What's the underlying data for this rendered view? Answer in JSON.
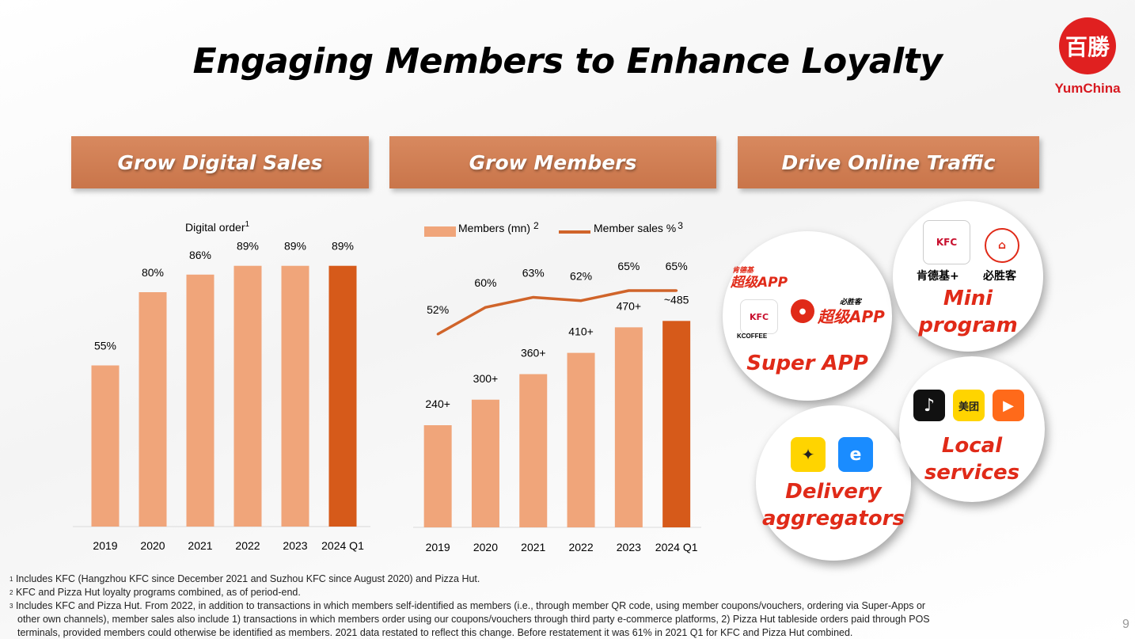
{
  "title": "Engaging Members to Enhance Loyalty",
  "logo": {
    "text": "YumChina",
    "seal": "百勝"
  },
  "banners": [
    "Grow Digital Sales",
    "Grow Members",
    "Drive Online Traffic"
  ],
  "page_number": "9",
  "chart_data": [
    {
      "type": "bar",
      "title": "Digital order",
      "title_sup": "1",
      "categories": [
        "2019",
        "2020",
        "2021",
        "2022",
        "2023",
        "2024 Q1"
      ],
      "values": [
        55,
        80,
        86,
        89,
        89,
        89
      ],
      "labels": [
        "55%",
        "80%",
        "86%",
        "89%",
        "89%",
        "89%"
      ],
      "ylim": [
        0,
        100
      ],
      "bar_color": "#f0a57a",
      "highlight_color": "#d65a1a"
    },
    {
      "type": "bar+line",
      "categories": [
        "2019",
        "2020",
        "2021",
        "2022",
        "2023",
        "2024 Q1"
      ],
      "series": [
        {
          "name": "Members (mn)",
          "name_sup": "2",
          "type": "bar",
          "values": [
            240,
            300,
            360,
            410,
            470,
            485
          ],
          "labels": [
            "240+",
            "300+",
            "360+",
            "410+",
            "470+",
            "~485"
          ]
        },
        {
          "name": "Member sales %",
          "name_sup": "3",
          "type": "line",
          "values": [
            52,
            60,
            63,
            62,
            65,
            65
          ],
          "labels": [
            "52%",
            "60%",
            "63%",
            "62%",
            "65%",
            "65%"
          ]
        }
      ],
      "bar_color": "#f0a57a",
      "highlight_color": "#d65a1a",
      "line_color": "#d0642a"
    }
  ],
  "traffic": {
    "super_app": {
      "label": "Super APP",
      "kfc_app": "超级APP",
      "kfc_small": "肯德基",
      "ph_app": "超级APP",
      "ph_small": "必胜客",
      "kcoffee": "KCOFFEE",
      "kfc": "KFC"
    },
    "mini_program": {
      "label_line1": "Mini",
      "label_line2": "program",
      "kfc_name": "肯德基+",
      "ph_name": "必胜客",
      "kfc": "KFC"
    },
    "delivery": {
      "label_line1": "Delivery",
      "label_line2": "aggregators"
    },
    "local": {
      "label_line1": "Local",
      "label_line2": "services",
      "meituan": "美团"
    }
  },
  "footnotes": [
    {
      "num": "1",
      "text": "Includes KFC (Hangzhou KFC since December 2021 and Suzhou KFC since August 2020) and Pizza Hut."
    },
    {
      "num": "2",
      "text": "KFC and Pizza Hut loyalty programs combined, as of period-end."
    },
    {
      "num": "3",
      "text": "Includes KFC and Pizza Hut. From 2022, in addition to transactions in which members self-identified as members (i.e., through member QR code, using member coupons/vouchers, ordering via Super-Apps or"
    },
    {
      "num": "",
      "text": "other own channels), member sales also include 1) transactions in which members order using our coupons/vouchers through third party e-commerce platforms, 2) Pizza Hut tableside orders paid through POS"
    },
    {
      "num": "",
      "text": "terminals, provided members could otherwise be identified as members. 2021 data restated to reflect this change. Before restatement it was 61% in 2021 Q1 for KFC and Pizza Hut combined."
    }
  ],
  "colors": {
    "accent": "#e02a18",
    "banner": "#cf7c50"
  }
}
